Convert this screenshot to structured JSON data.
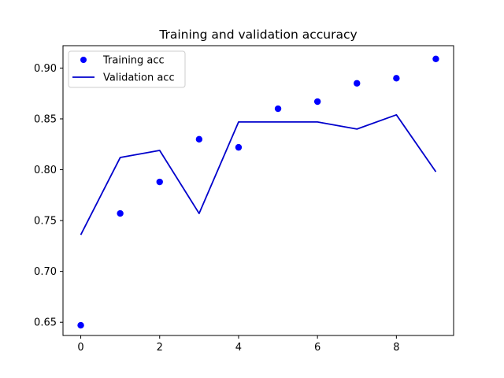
{
  "chart_data": {
    "type": "line",
    "title": "Training and validation accuracy",
    "xlabel": "",
    "ylabel": "",
    "x": [
      0,
      1,
      2,
      3,
      4,
      5,
      6,
      7,
      8,
      9
    ],
    "xlim": [
      -0.45,
      9.45
    ],
    "ylim": [
      0.637,
      0.922
    ],
    "xticks": [
      0,
      2,
      4,
      6,
      8
    ],
    "yticks": [
      0.65,
      0.7,
      0.75,
      0.8,
      0.85,
      0.9
    ],
    "xtick_labels": [
      "0",
      "2",
      "4",
      "6",
      "8"
    ],
    "ytick_labels": [
      "0.65",
      "0.70",
      "0.75",
      "0.80",
      "0.85",
      "0.90"
    ],
    "grid": false,
    "legend_position": "top-left",
    "series": [
      {
        "name": "Training acc",
        "style": "markers",
        "color": "#0000ff",
        "values": [
          0.647,
          0.757,
          0.788,
          0.83,
          0.822,
          0.86,
          0.867,
          0.885,
          0.89,
          0.909
        ]
      },
      {
        "name": "Validation acc",
        "style": "line",
        "color": "#0000cc",
        "values": [
          0.736,
          0.812,
          0.819,
          0.757,
          0.847,
          0.847,
          0.847,
          0.84,
          0.854,
          0.798
        ]
      }
    ]
  }
}
